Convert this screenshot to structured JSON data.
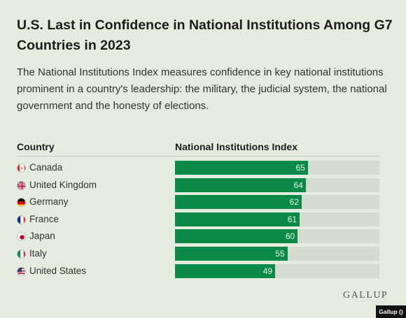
{
  "title": "U.S. Last in Confidence in National Institutions Among G7 Countries in 2023",
  "subtitle": "The National Institutions Index measures confidence in key national institutions prominent in a country's leadership: the military, the judicial system, the national government and the honesty of elections.",
  "columns": {
    "country": "Country",
    "index": "National Institutions Index"
  },
  "logo": "GALLUP",
  "credit": "Gallup ()",
  "colors": {
    "bar": "#0a8a46",
    "track": "#d3dccf",
    "background": "#e4ecdf"
  },
  "chart_data": {
    "type": "bar",
    "orientation": "horizontal",
    "title": "U.S. Last in Confidence in National Institutions Among G7 Countries in 2023",
    "xlabel": "National Institutions Index",
    "ylabel": "Country",
    "xlim": [
      0,
      100
    ],
    "categories": [
      "Canada",
      "United Kingdom",
      "Germany",
      "France",
      "Japan",
      "Italy",
      "United States"
    ],
    "values": [
      65,
      64,
      62,
      61,
      60,
      55,
      49
    ],
    "flags": [
      "canada-flag-icon",
      "uk-flag-icon",
      "germany-flag-icon",
      "france-flag-icon",
      "japan-flag-icon",
      "italy-flag-icon",
      "usa-flag-icon"
    ],
    "grid": false,
    "legend": "none"
  }
}
